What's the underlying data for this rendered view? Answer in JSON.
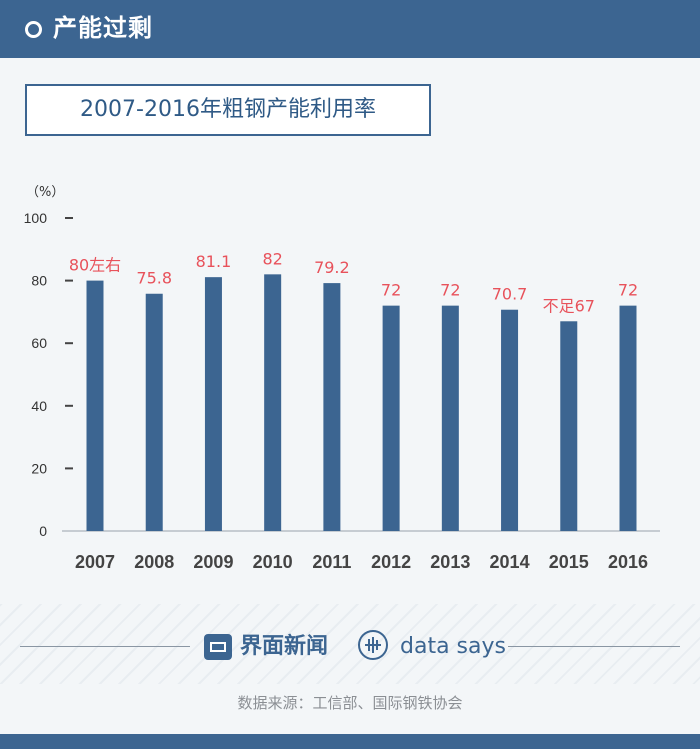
{
  "header": {
    "title": "产能过剩"
  },
  "chart_data": {
    "type": "bar",
    "title": "2007-2016年粗钢产能利用率",
    "unit_label": "（%）",
    "categories": [
      "2007",
      "2008",
      "2009",
      "2010",
      "2011",
      "2012",
      "2013",
      "2014",
      "2015",
      "2016"
    ],
    "values": [
      80,
      75.8,
      81.1,
      82,
      79.2,
      72,
      72,
      70.7,
      67,
      72
    ],
    "data_labels": [
      "80左右",
      "75.8",
      "81.1",
      "82",
      "79.2",
      "72",
      "72",
      "70.7",
      "不足67",
      "72"
    ],
    "ylim": [
      0,
      100
    ],
    "yticks": [
      0,
      20,
      40,
      60,
      80,
      100
    ],
    "grid": false,
    "legend": "none",
    "colors": {
      "bar": "#3c6591",
      "data_label": "#e8525b",
      "tick": "#333333"
    }
  },
  "footer": {
    "brand": "界面新闻",
    "brand_logo_icon": "jiemian-logo-icon",
    "data_says": "data says",
    "data_says_icon": "data-says-logo-icon",
    "source": "数据来源：工信部、国际钢铁协会"
  }
}
